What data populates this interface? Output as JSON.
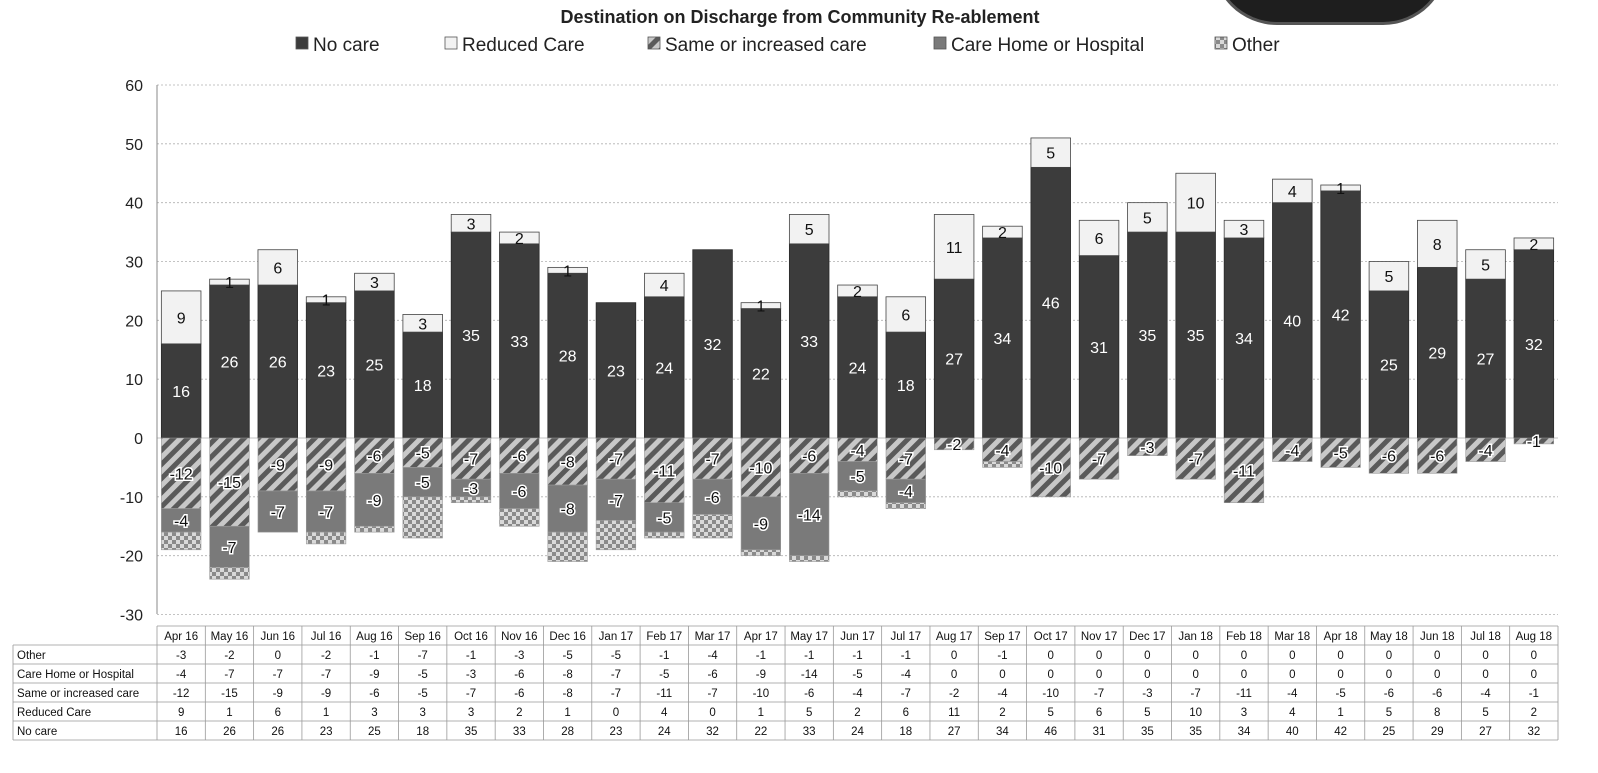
{
  "chart_data": {
    "type": "bar",
    "stacked": true,
    "title": "Destination on Discharge from Community Re-ablement",
    "categories": [
      "Apr 16",
      "May 16",
      "Jun 16",
      "Jul 16",
      "Aug 16",
      "Sep 16",
      "Oct 16",
      "Nov 16",
      "Dec 16",
      "Jan 17",
      "Feb 17",
      "Mar 17",
      "Apr 17",
      "May 17",
      "Jun 17",
      "Jul 17",
      "Aug 17",
      "Sep 17",
      "Oct 17",
      "Nov 17",
      "Dec 17",
      "Jan 18",
      "Feb 18",
      "Mar 18",
      "Apr 18",
      "May 18",
      "Jun 18",
      "Jul 18",
      "Aug 18"
    ],
    "series": [
      {
        "name": "No care",
        "color": "#3c3c3c",
        "pattern": "solid-dark",
        "values": [
          16,
          26,
          26,
          23,
          25,
          18,
          35,
          33,
          28,
          23,
          24,
          32,
          22,
          33,
          24,
          18,
          27,
          34,
          46,
          31,
          35,
          35,
          34,
          40,
          42,
          25,
          29,
          27,
          32
        ]
      },
      {
        "name": "Reduced Care",
        "color": "#f2f2f2",
        "pattern": "solid-light",
        "values": [
          9,
          1,
          6,
          1,
          3,
          3,
          3,
          2,
          1,
          0,
          4,
          0,
          1,
          5,
          2,
          6,
          11,
          2,
          5,
          6,
          5,
          10,
          3,
          4,
          1,
          5,
          8,
          5,
          2
        ]
      },
      {
        "name": "Same or increased care",
        "color": "#8c8c8c",
        "pattern": "diagonal",
        "values": [
          -12,
          -15,
          -9,
          -9,
          -6,
          -5,
          -7,
          -6,
          -8,
          -7,
          -11,
          -7,
          -10,
          -6,
          -4,
          -7,
          -2,
          -4,
          -10,
          -7,
          -3,
          -7,
          -11,
          -4,
          -5,
          -6,
          -6,
          -4,
          -1
        ]
      },
      {
        "name": "Care Home or Hospital",
        "color": "#7a7a7a",
        "pattern": "solid-mid",
        "values": [
          -4,
          -7,
          -7,
          -7,
          -9,
          -5,
          -3,
          -6,
          -8,
          -7,
          -5,
          -6,
          -9,
          -14,
          -5,
          -4,
          0,
          0,
          0,
          0,
          0,
          0,
          0,
          0,
          0,
          0,
          0,
          0,
          0
        ]
      },
      {
        "name": "Other",
        "color": "#b5b5b5",
        "pattern": "checker",
        "values": [
          -3,
          -2,
          0,
          -2,
          -1,
          -7,
          -1,
          -3,
          -5,
          -5,
          -1,
          -4,
          -1,
          -1,
          -1,
          -1,
          0,
          -1,
          0,
          0,
          0,
          0,
          0,
          0,
          0,
          0,
          0,
          0,
          0
        ]
      }
    ],
    "ylim": [
      -30,
      60
    ],
    "yticks": [
      60,
      50,
      40,
      30,
      20,
      10,
      0,
      -10,
      -20,
      -30
    ],
    "legend_position": "top",
    "data_table": true,
    "table_row_order": [
      "Other",
      "Care Home or Hospital",
      "Same or increased care",
      "Reduced Care",
      "No care"
    ],
    "grid": true
  }
}
